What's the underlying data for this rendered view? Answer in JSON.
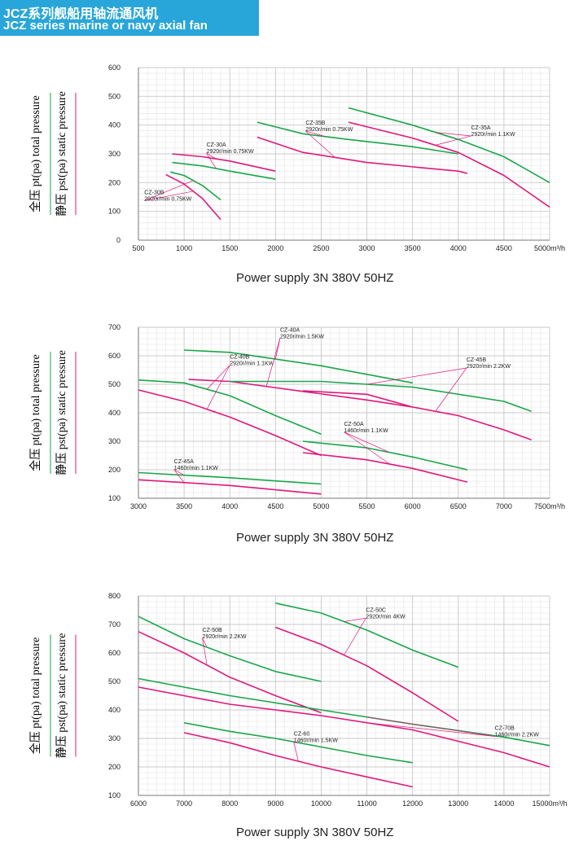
{
  "header": {
    "title_cn": "JCZ系列舰船用轴流通风机",
    "title_en": "JCZ series marine or navy axial fan"
  },
  "colors": {
    "total_pressure": "#1aa64a",
    "static_pressure": "#e0187c",
    "header_bg": "#29a6d9"
  },
  "y_title_total": "全压 pt(pa)  total pressure",
  "y_title_static": "静压 pst(pa)  static pressure",
  "caption": "Power supply     3N  380V  50HZ",
  "x_unit_suffix": "m³/h",
  "chart_data": [
    {
      "type": "line",
      "xlim": [
        500,
        5000
      ],
      "ylim": [
        0,
        600
      ],
      "xticks": [
        500,
        1000,
        1500,
        2000,
        2500,
        3000,
        3500,
        4000,
        4500,
        5000
      ],
      "yticks": [
        0,
        100,
        200,
        300,
        400,
        500,
        600
      ],
      "grid": true,
      "series": [
        {
          "name": "CZ-30B",
          "pressure": "total",
          "x": [
            850,
            1000,
            1200,
            1400
          ],
          "y": [
            237,
            225,
            190,
            140
          ]
        },
        {
          "name": "CZ-30B",
          "pressure": "static",
          "x": [
            800,
            1000,
            1200,
            1400
          ],
          "y": [
            228,
            195,
            145,
            72
          ]
        },
        {
          "name": "CZ-30A",
          "pressure": "total",
          "x": [
            870,
            1200,
            1500,
            2000
          ],
          "y": [
            270,
            258,
            240,
            212
          ]
        },
        {
          "name": "CZ-30A",
          "pressure": "static",
          "x": [
            870,
            1200,
            1500,
            2000
          ],
          "y": [
            300,
            290,
            275,
            240
          ]
        },
        {
          "name": "CZ-35B",
          "pressure": "total",
          "x": [
            1800,
            2300,
            2800,
            3500,
            4000
          ],
          "y": [
            410,
            370,
            350,
            325,
            300
          ]
        },
        {
          "name": "CZ-35B",
          "pressure": "static",
          "x": [
            1800,
            2300,
            3000,
            4000,
            4100
          ],
          "y": [
            358,
            305,
            270,
            240,
            232
          ]
        },
        {
          "name": "CZ-35A",
          "pressure": "total",
          "x": [
            2800,
            3500,
            4000,
            4500,
            5000
          ],
          "y": [
            460,
            400,
            350,
            290,
            200
          ]
        },
        {
          "name": "CZ-35A",
          "pressure": "static",
          "x": [
            2800,
            3500,
            4000,
            4500,
            5000
          ],
          "y": [
            410,
            355,
            305,
            225,
            115
          ]
        }
      ],
      "annotations": [
        {
          "lines": [
            "CZ-30B",
            "2920r/min  0.75KW"
          ],
          "x": 565,
          "y": 160
        },
        {
          "lines": [
            "CZ-30A",
            "2920r/min  0.75KW"
          ],
          "x": 1245,
          "y": 325
        },
        {
          "lines": [
            "CZ-35B",
            "2920r/min  0.75KW"
          ],
          "x": 2330,
          "y": 402
        },
        {
          "lines": [
            "CZ-35A",
            "2920r/min  1.1KW"
          ],
          "x": 4140,
          "y": 385
        }
      ]
    },
    {
      "type": "line",
      "xlim": [
        3000,
        7500
      ],
      "ylim": [
        100,
        700
      ],
      "xticks": [
        3000,
        3500,
        4000,
        4500,
        5000,
        5500,
        6000,
        6500,
        7000,
        7500
      ],
      "yticks": [
        100,
        200,
        300,
        400,
        500,
        600,
        700
      ],
      "grid": true,
      "series": [
        {
          "name": "CZ-45A",
          "pressure": "total",
          "x": [
            3000,
            4000,
            5000
          ],
          "y": [
            190,
            172,
            150
          ]
        },
        {
          "name": "CZ-45A",
          "pressure": "static",
          "x": [
            3000,
            4000,
            5000
          ],
          "y": [
            165,
            145,
            115
          ]
        },
        {
          "name": "CZ-40B",
          "pressure": "total",
          "x": [
            3000,
            3500,
            4000,
            4500,
            5000
          ],
          "y": [
            515,
            505,
            460,
            390,
            325
          ]
        },
        {
          "name": "CZ-40B",
          "pressure": "static",
          "x": [
            3000,
            3500,
            4000,
            4500,
            5000
          ],
          "y": [
            480,
            440,
            385,
            320,
            250
          ]
        },
        {
          "name": "CZ-40A",
          "pressure": "total",
          "x": [
            3500,
            4000,
            5000,
            6000
          ],
          "y": [
            620,
            612,
            565,
            505
          ]
        },
        {
          "name": "CZ-40A",
          "pressure": "static",
          "x": [
            3550,
            4000,
            4800,
            5500,
            6000
          ],
          "y": [
            517,
            510,
            475,
            445,
            420
          ]
        },
        {
          "name": "CZ-50A",
          "pressure": "total",
          "x": [
            4800,
            5500,
            6000,
            6600
          ],
          "y": [
            300,
            277,
            245,
            200
          ]
        },
        {
          "name": "CZ-50A",
          "pressure": "static",
          "x": [
            4800,
            5500,
            6000,
            6600
          ],
          "y": [
            260,
            235,
            205,
            157
          ]
        },
        {
          "name": "CZ-45B",
          "pressure": "total",
          "x": [
            4000,
            5000,
            6000,
            7000,
            7300
          ],
          "y": [
            510,
            510,
            490,
            440,
            405
          ]
        },
        {
          "name": "CZ-45B",
          "pressure": "static",
          "x": [
            4800,
            5500,
            6000,
            6500,
            7000,
            7300
          ],
          "y": [
            477,
            465,
            420,
            390,
            340,
            305
          ]
        }
      ],
      "annotations": [
        {
          "lines": [
            "CZ-45A",
            "1460r/min  1.1KW"
          ],
          "x": 3390,
          "y": 223
        },
        {
          "lines": [
            "CZ-40B",
            "2920r/min  1.1KW"
          ],
          "x": 4000,
          "y": 590
        },
        {
          "lines": [
            "CZ-40A",
            "2920r/min  1.5KW"
          ],
          "x": 4550,
          "y": 685
        },
        {
          "lines": [
            "CZ-50A",
            "1460r/min  1.1KW"
          ],
          "x": 5250,
          "y": 355
        },
        {
          "lines": [
            "CZ-45B",
            "2920r/min  2.2KW"
          ],
          "x": 6590,
          "y": 580
        }
      ]
    },
    {
      "type": "line",
      "xlim": [
        6000,
        15000
      ],
      "ylim": [
        100,
        800
      ],
      "xticks": [
        6000,
        7000,
        8000,
        9000,
        10000,
        11000,
        12000,
        13000,
        14000,
        15000
      ],
      "yticks": [
        100,
        200,
        300,
        400,
        500,
        600,
        700,
        800
      ],
      "grid": true,
      "series": [
        {
          "name": "CZ-50B",
          "pressure": "total",
          "x": [
            6000,
            7000,
            8000,
            9000,
            10000
          ],
          "y": [
            728,
            650,
            590,
            535,
            500
          ]
        },
        {
          "name": "CZ-50B",
          "pressure": "static",
          "x": [
            6000,
            7000,
            8000,
            9000,
            10000
          ],
          "y": [
            675,
            600,
            515,
            450,
            390
          ]
        },
        {
          "name": "CZ-50C",
          "pressure": "total",
          "x": [
            9000,
            10000,
            11000,
            12000,
            13000
          ],
          "y": [
            775,
            740,
            680,
            610,
            550
          ]
        },
        {
          "name": "CZ-50C",
          "pressure": "static",
          "x": [
            9000,
            10000,
            11000,
            12000,
            13000
          ],
          "y": [
            690,
            630,
            555,
            460,
            360
          ]
        },
        {
          "name": "CZ-70B",
          "pressure": "total",
          "x": [
            6000,
            8000,
            10000,
            12000,
            14000,
            15000
          ],
          "y": [
            510,
            450,
            400,
            350,
            305,
            275
          ]
        },
        {
          "name": "CZ-70B",
          "pressure": "static",
          "x": [
            6000,
            8000,
            10000,
            12000,
            14000,
            15000
          ],
          "y": [
            480,
            420,
            380,
            330,
            250,
            200
          ]
        },
        {
          "name": "CZ-60",
          "pressure": "total",
          "x": [
            7000,
            8000,
            9000,
            10000,
            11000,
            12000
          ],
          "y": [
            355,
            325,
            300,
            270,
            240,
            215
          ]
        },
        {
          "name": "CZ-60",
          "pressure": "static",
          "x": [
            7000,
            8000,
            9000,
            10000,
            11000,
            12000
          ],
          "y": [
            320,
            285,
            240,
            200,
            165,
            130
          ]
        }
      ],
      "annotations": [
        {
          "lines": [
            "CZ-50B",
            "2920r/min  2.2KW"
          ],
          "x": 7400,
          "y": 675
        },
        {
          "lines": [
            "CZ-50C",
            "2920r/min  4KW"
          ],
          "x": 10980,
          "y": 745
        },
        {
          "lines": [
            "CZ-60",
            "1460r/min  1.5KW"
          ],
          "x": 9400,
          "y": 310
        },
        {
          "lines": [
            "CZ-70B",
            "1460r/min  2.2KW"
          ],
          "x": 13800,
          "y": 330
        }
      ]
    }
  ]
}
